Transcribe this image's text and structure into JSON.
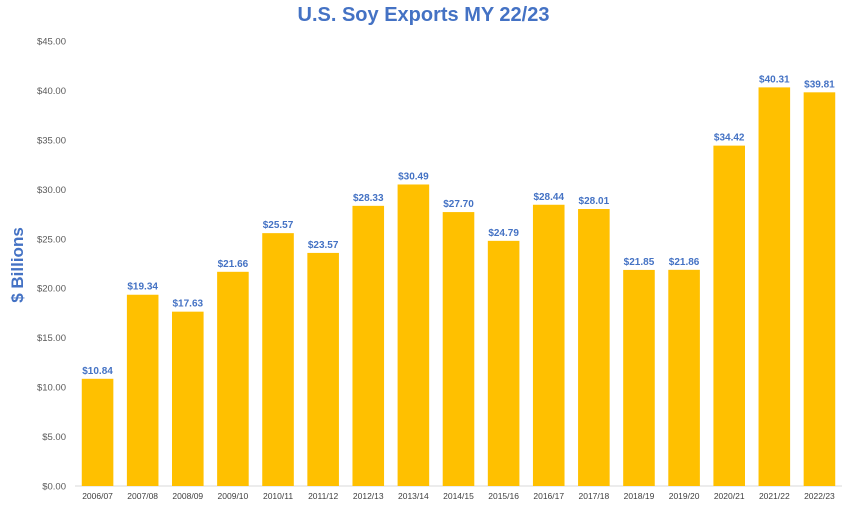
{
  "chart_data": {
    "type": "bar",
    "title": "U.S. Soy Exports MY 22/23",
    "ylabel": "$ Billions",
    "xlabel": "",
    "categories": [
      "2006/07",
      "2007/08",
      "2008/09",
      "2009/10",
      "2010/11",
      "2011/12",
      "2012/13",
      "2013/14",
      "2014/15",
      "2015/16",
      "2016/17",
      "2017/18",
      "2018/19",
      "2019/20",
      "2020/21",
      "2021/22",
      "2022/23"
    ],
    "values": [
      10.84,
      19.34,
      17.63,
      21.66,
      25.57,
      23.57,
      28.33,
      30.49,
      27.7,
      24.79,
      28.44,
      28.01,
      21.85,
      21.86,
      34.42,
      40.31,
      39.81
    ],
    "data_labels": [
      "$10.84",
      "$19.34",
      "$17.63",
      "$21.66",
      "$25.57",
      "$23.57",
      "$28.33",
      "$30.49",
      "$27.70",
      "$24.79",
      "$28.44",
      "$28.01",
      "$21.85",
      "$21.86",
      "$34.42",
      "$40.31",
      "$39.81"
    ],
    "yticks": [
      0,
      5,
      10,
      15,
      20,
      25,
      30,
      35,
      40,
      45
    ],
    "ytick_labels": [
      "$0.00",
      "$5.00",
      "$10.00",
      "$15.00",
      "$20.00",
      "$25.00",
      "$30.00",
      "$35.00",
      "$40.00",
      "$45.00"
    ],
    "ylim": [
      0,
      45
    ],
    "grid": false,
    "legend": "none",
    "bar_color": "#FFC000",
    "label_color": "#4472C4"
  }
}
